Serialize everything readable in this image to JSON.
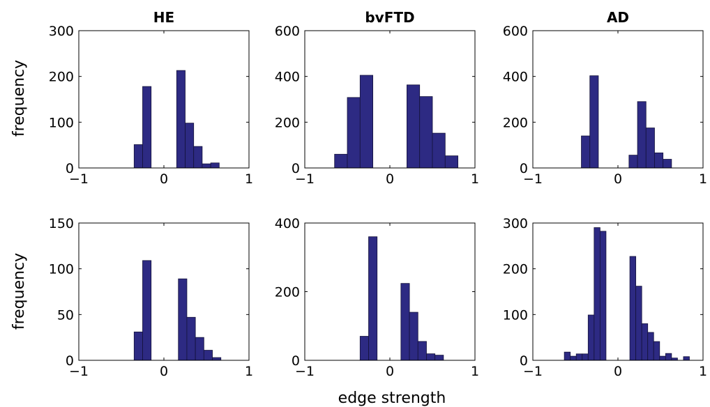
{
  "colors": {
    "bar_fill": "#2d2a83",
    "bar_edge": "#14123a",
    "axis": "#000000",
    "background": "#ffffff"
  },
  "column_titles": [
    "HE",
    "bvFTD",
    "AD"
  ],
  "row_ylabels": [
    "frequency",
    "frequency"
  ],
  "shared_xlabel": "edge strength",
  "chart_data": [
    {
      "type": "bar",
      "title": "HE",
      "xlim": [
        -1,
        1
      ],
      "xticks": [
        -1,
        0,
        1
      ],
      "ylim": [
        0,
        300
      ],
      "yticks": [
        0,
        100,
        200,
        300
      ],
      "grid": false,
      "bins": [
        {
          "x0": -0.35,
          "x1": -0.25,
          "count": 51
        },
        {
          "x0": -0.25,
          "x1": -0.15,
          "count": 178
        },
        {
          "x0": 0.15,
          "x1": 0.25,
          "count": 213
        },
        {
          "x0": 0.25,
          "x1": 0.35,
          "count": 98
        },
        {
          "x0": 0.35,
          "x1": 0.45,
          "count": 47
        },
        {
          "x0": 0.45,
          "x1": 0.55,
          "count": 9
        },
        {
          "x0": 0.55,
          "x1": 0.65,
          "count": 11
        }
      ]
    },
    {
      "type": "bar",
      "title": "bvFTD",
      "xlim": [
        -1,
        1
      ],
      "xticks": [
        -1,
        0,
        1
      ],
      "ylim": [
        0,
        600
      ],
      "yticks": [
        0,
        200,
        400,
        600
      ],
      "grid": false,
      "bins": [
        {
          "x0": -0.65,
          "x1": -0.5,
          "count": 60
        },
        {
          "x0": -0.5,
          "x1": -0.35,
          "count": 308
        },
        {
          "x0": -0.35,
          "x1": -0.2,
          "count": 405
        },
        {
          "x0": 0.2,
          "x1": 0.35,
          "count": 363
        },
        {
          "x0": 0.35,
          "x1": 0.5,
          "count": 312
        },
        {
          "x0": 0.5,
          "x1": 0.65,
          "count": 152
        },
        {
          "x0": 0.65,
          "x1": 0.8,
          "count": 53
        }
      ]
    },
    {
      "type": "bar",
      "title": "AD",
      "xlim": [
        -1,
        1
      ],
      "xticks": [
        -1,
        0,
        1
      ],
      "ylim": [
        0,
        600
      ],
      "yticks": [
        0,
        200,
        400,
        600
      ],
      "grid": false,
      "bins": [
        {
          "x0": -0.43,
          "x1": -0.33,
          "count": 140
        },
        {
          "x0": -0.33,
          "x1": -0.23,
          "count": 403
        },
        {
          "x0": 0.13,
          "x1": 0.23,
          "count": 56
        },
        {
          "x0": 0.23,
          "x1": 0.33,
          "count": 290
        },
        {
          "x0": 0.33,
          "x1": 0.43,
          "count": 175
        },
        {
          "x0": 0.43,
          "x1": 0.53,
          "count": 66
        },
        {
          "x0": 0.53,
          "x1": 0.63,
          "count": 38
        }
      ]
    },
    {
      "type": "bar",
      "title": "",
      "xlim": [
        -1,
        1
      ],
      "xticks": [
        -1,
        0,
        1
      ],
      "ylim": [
        0,
        150
      ],
      "yticks": [
        0,
        50,
        100,
        150
      ],
      "grid": false,
      "bins": [
        {
          "x0": -0.35,
          "x1": -0.25,
          "count": 31
        },
        {
          "x0": -0.25,
          "x1": -0.15,
          "count": 109
        },
        {
          "x0": 0.17,
          "x1": 0.27,
          "count": 89
        },
        {
          "x0": 0.27,
          "x1": 0.37,
          "count": 47
        },
        {
          "x0": 0.37,
          "x1": 0.47,
          "count": 25
        },
        {
          "x0": 0.47,
          "x1": 0.57,
          "count": 11
        },
        {
          "x0": 0.57,
          "x1": 0.67,
          "count": 3
        }
      ]
    },
    {
      "type": "bar",
      "title": "",
      "xlim": [
        -1,
        1
      ],
      "xticks": [
        -1,
        0,
        1
      ],
      "ylim": [
        0,
        400
      ],
      "yticks": [
        0,
        200,
        400
      ],
      "grid": false,
      "bins": [
        {
          "x0": -0.35,
          "x1": -0.25,
          "count": 70
        },
        {
          "x0": -0.25,
          "x1": -0.15,
          "count": 360
        },
        {
          "x0": 0.13,
          "x1": 0.23,
          "count": 224
        },
        {
          "x0": 0.23,
          "x1": 0.33,
          "count": 140
        },
        {
          "x0": 0.33,
          "x1": 0.43,
          "count": 55
        },
        {
          "x0": 0.43,
          "x1": 0.53,
          "count": 19
        },
        {
          "x0": 0.53,
          "x1": 0.63,
          "count": 15
        }
      ]
    },
    {
      "type": "bar",
      "title": "",
      "xlim": [
        -1,
        1
      ],
      "xticks": [
        -1,
        0,
        1
      ],
      "ylim": [
        0,
        300
      ],
      "yticks": [
        0,
        100,
        200,
        300
      ],
      "grid": false,
      "bins": [
        {
          "x0": -0.63,
          "x1": -0.56,
          "count": 18
        },
        {
          "x0": -0.56,
          "x1": -0.49,
          "count": 9
        },
        {
          "x0": -0.49,
          "x1": -0.42,
          "count": 14
        },
        {
          "x0": -0.42,
          "x1": -0.35,
          "count": 14
        },
        {
          "x0": -0.35,
          "x1": -0.28,
          "count": 99
        },
        {
          "x0": -0.28,
          "x1": -0.21,
          "count": 290
        },
        {
          "x0": -0.21,
          "x1": -0.14,
          "count": 282
        },
        {
          "x0": 0.14,
          "x1": 0.21,
          "count": 227
        },
        {
          "x0": 0.21,
          "x1": 0.28,
          "count": 162
        },
        {
          "x0": 0.28,
          "x1": 0.35,
          "count": 80
        },
        {
          "x0": 0.35,
          "x1": 0.42,
          "count": 61
        },
        {
          "x0": 0.42,
          "x1": 0.49,
          "count": 41
        },
        {
          "x0": 0.49,
          "x1": 0.56,
          "count": 9
        },
        {
          "x0": 0.56,
          "x1": 0.63,
          "count": 15
        },
        {
          "x0": 0.63,
          "x1": 0.7,
          "count": 5
        },
        {
          "x0": 0.77,
          "x1": 0.84,
          "count": 8
        }
      ]
    }
  ]
}
